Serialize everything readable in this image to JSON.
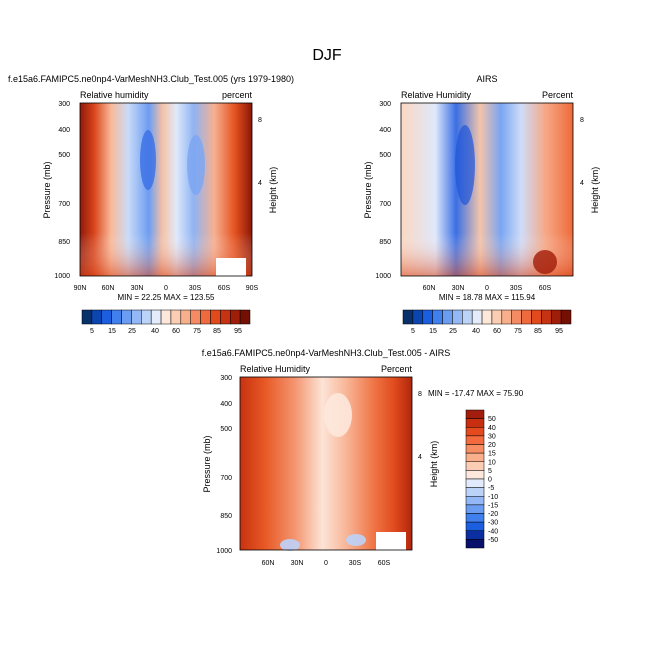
{
  "figure": {
    "title": "DJF"
  },
  "chart_data": [
    {
      "type": "heatmap",
      "title": "f.e15a6.FAMIPC5.ne0np4-VarMeshNH3.Club_Test.005 (yrs 1979-1980)",
      "left_label": "Relative humidity",
      "right_label": "percent",
      "ylabel": "Pressure (mb)",
      "ylabel_right": "Height (km)",
      "xticks": [
        "90N",
        "60N",
        "30N",
        "0",
        "30S",
        "60S",
        "90S"
      ],
      "yticks": [
        "300",
        "400",
        "500",
        "700",
        "850",
        "1000"
      ],
      "height_ticks": [
        "8",
        "4"
      ],
      "stats": "MIN = 22.25  MAX = 123.55",
      "min": 22.25,
      "max": 123.55,
      "colorbar": {
        "labels": [
          "5",
          "15",
          "25",
          "40",
          "60",
          "75",
          "85",
          "95"
        ],
        "colors": [
          "#08306b",
          "#0b45b0",
          "#1c5ee0",
          "#3f7fee",
          "#6a9cf2",
          "#93b8f5",
          "#bcd3f8",
          "#e4ecfb",
          "#fde7d8",
          "#fbcdb2",
          "#f8af8b",
          "#f58b63",
          "#ef6a3d",
          "#e14a1c",
          "#c53312",
          "#9e1e0a",
          "#731003"
        ]
      }
    },
    {
      "type": "heatmap",
      "title": "AIRS",
      "left_label": "Relative Humidity",
      "right_label": "Percent",
      "ylabel": "Pressure (mb)",
      "ylabel_right": "Height (km)",
      "xticks": [
        "60N",
        "30N",
        "0",
        "30S",
        "60S"
      ],
      "yticks": [
        "300",
        "400",
        "500",
        "700",
        "850",
        "1000"
      ],
      "height_ticks": [
        "8",
        "4"
      ],
      "stats": "MIN = 18.78  MAX = 115.94",
      "min": 18.78,
      "max": 115.94,
      "colorbar": {
        "labels": [
          "5",
          "15",
          "25",
          "40",
          "60",
          "75",
          "85",
          "95"
        ]
      }
    },
    {
      "type": "heatmap",
      "title": "f.e15a6.FAMIPC5.ne0np4-VarMeshNH3.Club_Test.005 - AIRS",
      "left_label": "Relative Humidity",
      "right_label": "Percent",
      "ylabel": "Pressure (mb)",
      "ylabel_right": "Height (km)",
      "xticks": [
        "60N",
        "30N",
        "0",
        "30S",
        "60S"
      ],
      "yticks": [
        "300",
        "400",
        "500",
        "700",
        "850",
        "1000"
      ],
      "height_ticks": [
        "8",
        "4"
      ],
      "stats": "MIN = -17.47  MAX = 75.90",
      "min": -17.47,
      "max": 75.9,
      "colorbar": {
        "labels": [
          "50",
          "40",
          "30",
          "20",
          "15",
          "10",
          "5",
          "0",
          "-5",
          "-10",
          "-15",
          "-20",
          "-30",
          "-40",
          "-50"
        ],
        "colors": [
          "#a21d0d",
          "#c82e10",
          "#e44a1e",
          "#f26a3d",
          "#f68d63",
          "#f9ae8c",
          "#fcccb4",
          "#fde8dd",
          "#e1ebfb",
          "#bcd3f8",
          "#93b8f5",
          "#6a9cf2",
          "#3f7fee",
          "#1c5ee0",
          "#0b2fa0",
          "#08106b"
        ]
      }
    }
  ]
}
